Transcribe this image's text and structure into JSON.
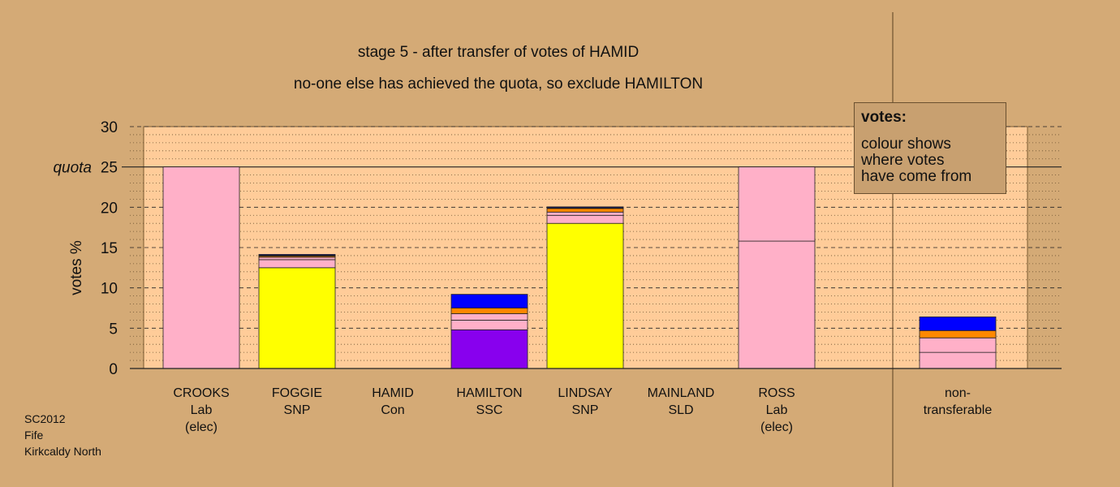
{
  "title": "stage 5 - after transfer of votes of HAMID",
  "subtitle": "no-one else has achieved the quota, so exclude HAMILTON",
  "source": [
    "SC2012",
    "Fife",
    "Kirkcaldy North"
  ],
  "legend": {
    "title": "votes:",
    "lines": [
      "colour shows",
      "where votes",
      "have come from"
    ]
  },
  "chart_data": {
    "type": "bar",
    "stacked": true,
    "ylabel": "votes %",
    "ylim": [
      0,
      30
    ],
    "yticks": [
      0,
      5,
      10,
      15,
      20,
      25,
      30
    ],
    "quota": 25,
    "quota_label": "quota",
    "grid": true,
    "colors": {
      "background": "#d4aa76",
      "plot": "#ffcc99",
      "Lab": "#ffb0c8",
      "SNP": "#ffff00",
      "SSC": "#8800ee",
      "Con": "#0000ff",
      "SLD": "#ff8800",
      "Ind": "#000000"
    },
    "categories": [
      {
        "name": "CROOKS",
        "party": "Lab",
        "note": "(elec)",
        "segments": [
          {
            "from": "Lab",
            "color": "#ffb0c8",
            "value": 25.0
          }
        ]
      },
      {
        "name": "FOGGIE",
        "party": "SNP",
        "note": "",
        "segments": [
          {
            "from": "SNP",
            "color": "#ffff00",
            "value": 12.5
          },
          {
            "from": "Lab",
            "color": "#ffb0c8",
            "value": 1.0
          },
          {
            "from": "Lab2",
            "color": "#ffb0c8",
            "value": 0.3
          },
          {
            "from": "SLD",
            "color": "#ff8800",
            "value": 0.15
          },
          {
            "from": "Ind",
            "color": "#000000",
            "value": 0.1
          },
          {
            "from": "Con",
            "color": "#0000ff",
            "value": 0.1
          }
        ]
      },
      {
        "name": "HAMID",
        "party": "Con",
        "note": "",
        "segments": []
      },
      {
        "name": "HAMILTON",
        "party": "SSC",
        "note": "",
        "segments": [
          {
            "from": "SSC",
            "color": "#8800ee",
            "value": 4.8
          },
          {
            "from": "Lab",
            "color": "#ffb0c8",
            "value": 1.2
          },
          {
            "from": "Lab2",
            "color": "#ffb0c8",
            "value": 0.8
          },
          {
            "from": "SLD",
            "color": "#ff8800",
            "value": 0.7
          },
          {
            "from": "Con",
            "color": "#0000ff",
            "value": 1.7
          }
        ]
      },
      {
        "name": "LINDSAY",
        "party": "SNP",
        "note": "",
        "segments": [
          {
            "from": "SNP",
            "color": "#ffff00",
            "value": 18.0
          },
          {
            "from": "Lab",
            "color": "#ffb0c8",
            "value": 1.0
          },
          {
            "from": "Lab2",
            "color": "#ffb0c8",
            "value": 0.4
          },
          {
            "from": "SLD",
            "color": "#ff8800",
            "value": 0.45
          },
          {
            "from": "Ind",
            "color": "#000000",
            "value": 0.1
          },
          {
            "from": "Con",
            "color": "#0000ff",
            "value": 0.1
          }
        ]
      },
      {
        "name": "MAINLAND",
        "party": "SLD",
        "note": "",
        "segments": []
      },
      {
        "name": "ROSS",
        "party": "Lab",
        "note": "(elec)",
        "segments": [
          {
            "from": "Lab",
            "color": "#ffb0c8",
            "value": 15.8
          },
          {
            "from": "Lab2",
            "color": "#ffb0c8",
            "value": 9.2
          }
        ]
      },
      {
        "name": "non-",
        "party": "transferable",
        "note": "",
        "segments": [
          {
            "from": "Lab",
            "color": "#ffb0c8",
            "value": 2.0
          },
          {
            "from": "Lab2",
            "color": "#ffb0c8",
            "value": 1.8
          },
          {
            "from": "SLD",
            "color": "#ff8800",
            "value": 0.9
          },
          {
            "from": "Con",
            "color": "#0000ff",
            "value": 1.7
          }
        ]
      }
    ]
  }
}
